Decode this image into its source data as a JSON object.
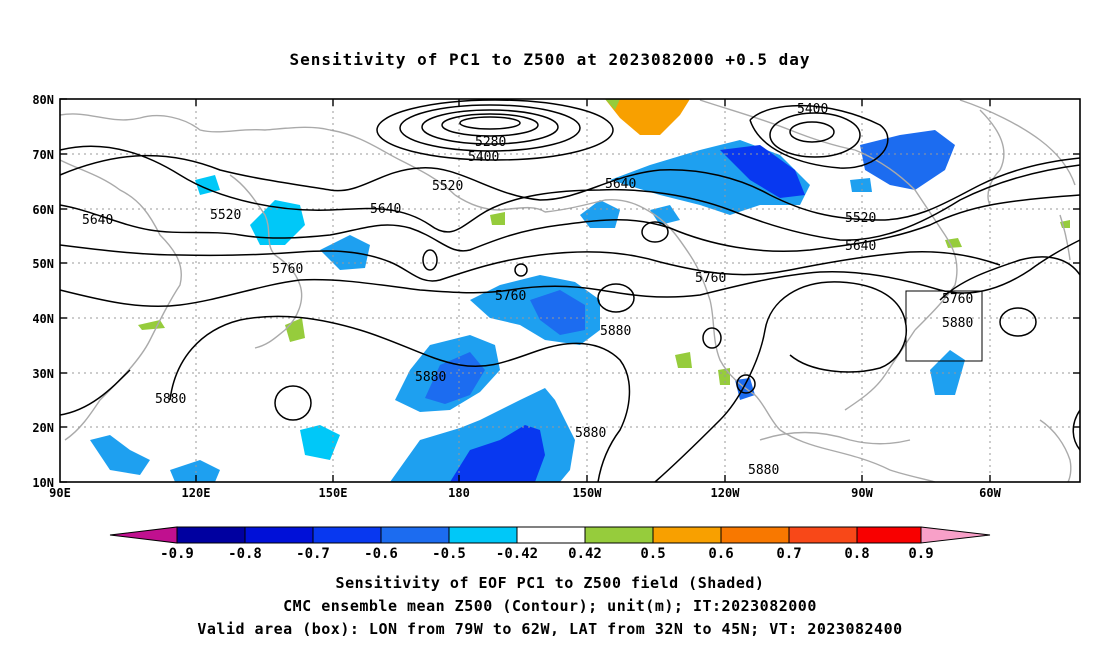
{
  "title": "Sensitivity of PC1 to Z500 at 2023082000 +0.5 day",
  "lat_labels": [
    "80N",
    "70N",
    "60N",
    "50N",
    "40N",
    "30N",
    "20N",
    "10N"
  ],
  "lon_labels": [
    "90E",
    "120E",
    "150E",
    "180",
    "150W",
    "120W",
    "90W",
    "60W"
  ],
  "contour_labels": [
    {
      "text": "5280"
    },
    {
      "text": "5400"
    },
    {
      "text": "5400"
    },
    {
      "text": "5520"
    },
    {
      "text": "5520"
    },
    {
      "text": "5520"
    },
    {
      "text": "5640"
    },
    {
      "text": "5640"
    },
    {
      "text": "5640"
    },
    {
      "text": "5640"
    },
    {
      "text": "5760"
    },
    {
      "text": "5760"
    },
    {
      "text": "5760"
    },
    {
      "text": "5760"
    },
    {
      "text": "5880"
    },
    {
      "text": "5880"
    },
    {
      "text": "5880"
    },
    {
      "text": "5880"
    },
    {
      "text": "5880"
    },
    {
      "text": "5880"
    }
  ],
  "colorbar": {
    "labels": [
      "-0.9",
      "-0.8",
      "-0.7",
      "-0.6",
      "-0.5",
      "-0.42",
      "0.42",
      "0.5",
      "0.6",
      "0.7",
      "0.8",
      "0.9"
    ],
    "colors": {
      "lt_m09": "#c0108f",
      "b1": "#0000a0",
      "b2": "#0010d8",
      "b3": "#0838f0",
      "b4": "#1c6cf0",
      "b5": "#1ea0f0",
      "b6": "#00c8f8",
      "white": "#ffffff",
      "g": "#96cc3c",
      "o1": "#f8a000",
      "o2": "#f87800",
      "o3": "#f84818",
      "r": "#f80000",
      "gt_09": "#f8a0c8"
    }
  },
  "captions": {
    "line1": "Sensitivity of EOF PC1 to Z500 field (Shaded)",
    "line2": "CMC ensemble mean Z500 (Contour); unit(m); IT:2023082000",
    "line3": "Valid area (box): LON from 79W to 62W, LAT from 32N to 45N; VT: 2023082400"
  }
}
